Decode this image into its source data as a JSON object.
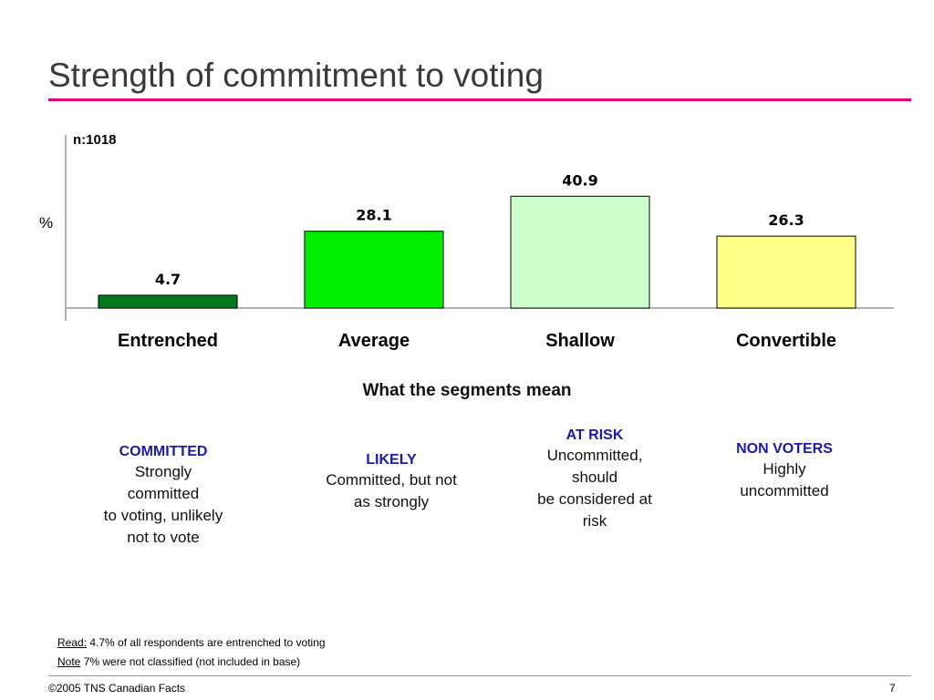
{
  "slide": {
    "title": "Strength of commitment to voting",
    "accent_color": "#e4007c"
  },
  "chart_data": {
    "type": "bar",
    "categories": [
      "Entrenched",
      "Average",
      "Shallow",
      "Convertible"
    ],
    "values": [
      4.7,
      28.1,
      40.9,
      26.3
    ],
    "data_labels": [
      "4.7",
      "28.1",
      "40.9",
      "26.3"
    ],
    "colors": [
      "#007a1c",
      "#00ee00",
      "#ccffcc",
      "#ffff88"
    ],
    "ylabel": "%",
    "sample_note": "n:1018",
    "ylim": [
      0,
      50
    ],
    "grid": false,
    "legend": "none"
  },
  "segments": {
    "heading": "What the segments mean",
    "items": [
      {
        "name": "COMMITTED",
        "lines": [
          "Strongly",
          "committed",
          "to voting, unlikely",
          "not to vote"
        ]
      },
      {
        "name": "LIKELY",
        "lines": [
          "Committed, but not",
          "as strongly"
        ]
      },
      {
        "name": "AT RISK",
        "lines": [
          "Uncommitted,",
          "should",
          "be considered at",
          "risk"
        ]
      },
      {
        "name": "NON VOTERS",
        "lines": [
          "Highly",
          "uncommitted"
        ]
      }
    ]
  },
  "notes": {
    "read_key": "Read:",
    "read_text": "4.7% of all respondents are entrenched to voting",
    "note_key": "Note",
    "note_text": "7% were not classified (not included in base)"
  },
  "footer": {
    "copyright": "©2005 TNS Canadian Facts",
    "page": "7"
  }
}
